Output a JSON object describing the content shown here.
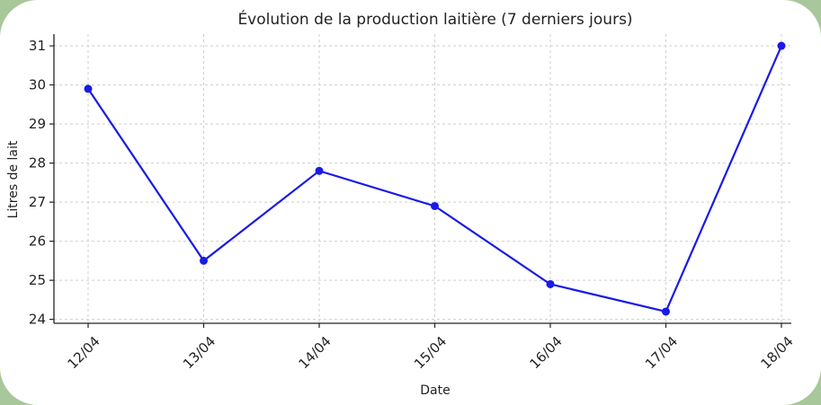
{
  "chart_data": {
    "type": "line",
    "title": "Évolution de la production laitière (7 derniers jours)",
    "xlabel": "Date",
    "ylabel": "Litres de lait",
    "categories": [
      "12/04",
      "13/04",
      "14/04",
      "15/04",
      "16/04",
      "17/04",
      "18/04"
    ],
    "series": [
      {
        "values": [
          29.9,
          25.5,
          27.8,
          26.9,
          24.9,
          24.2,
          31.0
        ]
      }
    ],
    "ylim": [
      23.9,
      31.3
    ],
    "yticks": [
      24,
      25,
      26,
      27,
      28,
      29,
      30,
      31
    ],
    "grid": true,
    "line_color": "#1a1ae6",
    "frame_color": "#a8c79a"
  }
}
